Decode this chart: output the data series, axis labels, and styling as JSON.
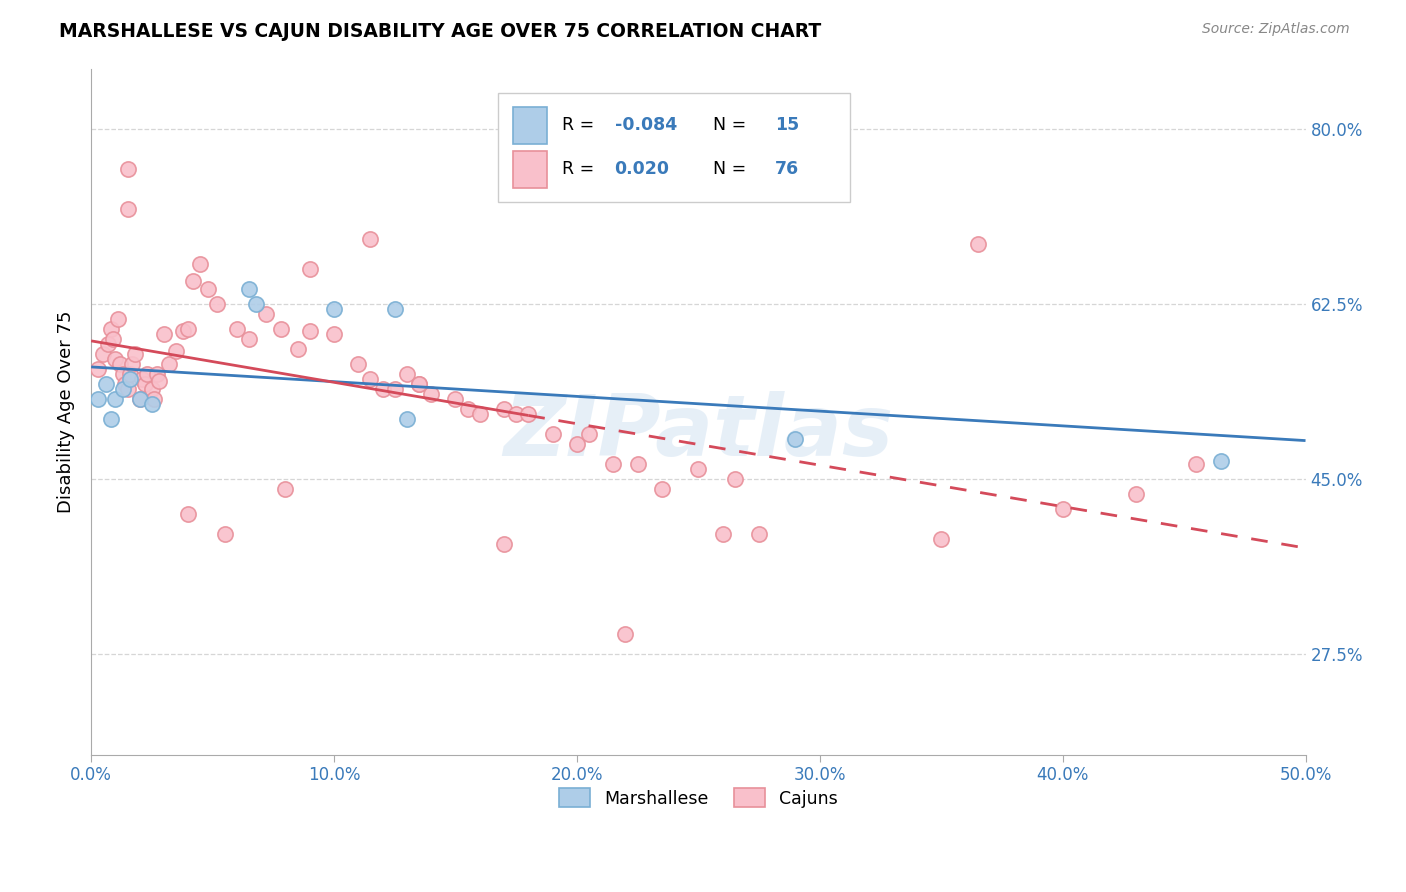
{
  "title": "MARSHALLESE VS CAJUN DISABILITY AGE OVER 75 CORRELATION CHART",
  "source": "Source: ZipAtlas.com",
  "ylabel": "Disability Age Over 75",
  "xlim": [
    0.0,
    0.5
  ],
  "ylim": [
    0.175,
    0.86
  ],
  "xtick_vals": [
    0.0,
    0.1,
    0.2,
    0.3,
    0.4,
    0.5
  ],
  "xtick_labels": [
    "0.0%",
    "10.0%",
    "20.0%",
    "30.0%",
    "40.0%",
    "50.0%"
  ],
  "ytick_vals": [
    0.275,
    0.45,
    0.625,
    0.8
  ],
  "ytick_labels": [
    "27.5%",
    "45.0%",
    "62.5%",
    "80.0%"
  ],
  "marshallese_R": "-0.084",
  "marshallese_N": "15",
  "cajun_R": "0.020",
  "cajun_N": "76",
  "blue_face": "#aecde8",
  "blue_edge": "#7aafd4",
  "pink_face": "#f9c0cb",
  "pink_edge": "#e8909a",
  "blue_line": "#3a7aba",
  "pink_line_solid": "#d44a5a",
  "pink_line_dash": "#d44a5a",
  "watermark_color": "#dce9f5",
  "label_color": "#3a7aba",
  "marshallese_x": [
    0.003,
    0.006,
    0.008,
    0.01,
    0.013,
    0.016,
    0.02,
    0.025,
    0.065,
    0.068,
    0.1,
    0.125,
    0.13,
    0.29,
    0.465
  ],
  "marshallese_y": [
    0.53,
    0.545,
    0.51,
    0.53,
    0.54,
    0.55,
    0.53,
    0.525,
    0.64,
    0.625,
    0.62,
    0.62,
    0.51,
    0.49,
    0.468
  ],
  "cajun_x": [
    0.003,
    0.005,
    0.007,
    0.008,
    0.009,
    0.01,
    0.011,
    0.012,
    0.013,
    0.014,
    0.015,
    0.015,
    0.016,
    0.017,
    0.018,
    0.02,
    0.021,
    0.022,
    0.023,
    0.025,
    0.026,
    0.027,
    0.028,
    0.03,
    0.032,
    0.035,
    0.038,
    0.04,
    0.042,
    0.045,
    0.048,
    0.052,
    0.06,
    0.065,
    0.072,
    0.078,
    0.085,
    0.09,
    0.1,
    0.11,
    0.115,
    0.12,
    0.125,
    0.13,
    0.135,
    0.14,
    0.15,
    0.155,
    0.16,
    0.17,
    0.175,
    0.18,
    0.19,
    0.2,
    0.205,
    0.215,
    0.225,
    0.235,
    0.25,
    0.265,
    0.015,
    0.09,
    0.115,
    0.135,
    0.26,
    0.275,
    0.35,
    0.4,
    0.43,
    0.455,
    0.04,
    0.055,
    0.08,
    0.17,
    0.22,
    0.365
  ],
  "cajun_y": [
    0.56,
    0.575,
    0.585,
    0.6,
    0.59,
    0.57,
    0.61,
    0.565,
    0.555,
    0.545,
    0.54,
    0.76,
    0.555,
    0.565,
    0.575,
    0.53,
    0.55,
    0.545,
    0.555,
    0.54,
    0.53,
    0.555,
    0.548,
    0.595,
    0.565,
    0.578,
    0.598,
    0.6,
    0.648,
    0.665,
    0.64,
    0.625,
    0.6,
    0.59,
    0.615,
    0.6,
    0.58,
    0.598,
    0.595,
    0.565,
    0.55,
    0.54,
    0.54,
    0.555,
    0.545,
    0.535,
    0.53,
    0.52,
    0.515,
    0.52,
    0.515,
    0.515,
    0.495,
    0.485,
    0.495,
    0.465,
    0.465,
    0.44,
    0.46,
    0.45,
    0.72,
    0.66,
    0.69,
    0.545,
    0.395,
    0.395,
    0.39,
    0.42,
    0.435,
    0.465,
    0.415,
    0.395,
    0.44,
    0.385,
    0.295,
    0.685
  ]
}
